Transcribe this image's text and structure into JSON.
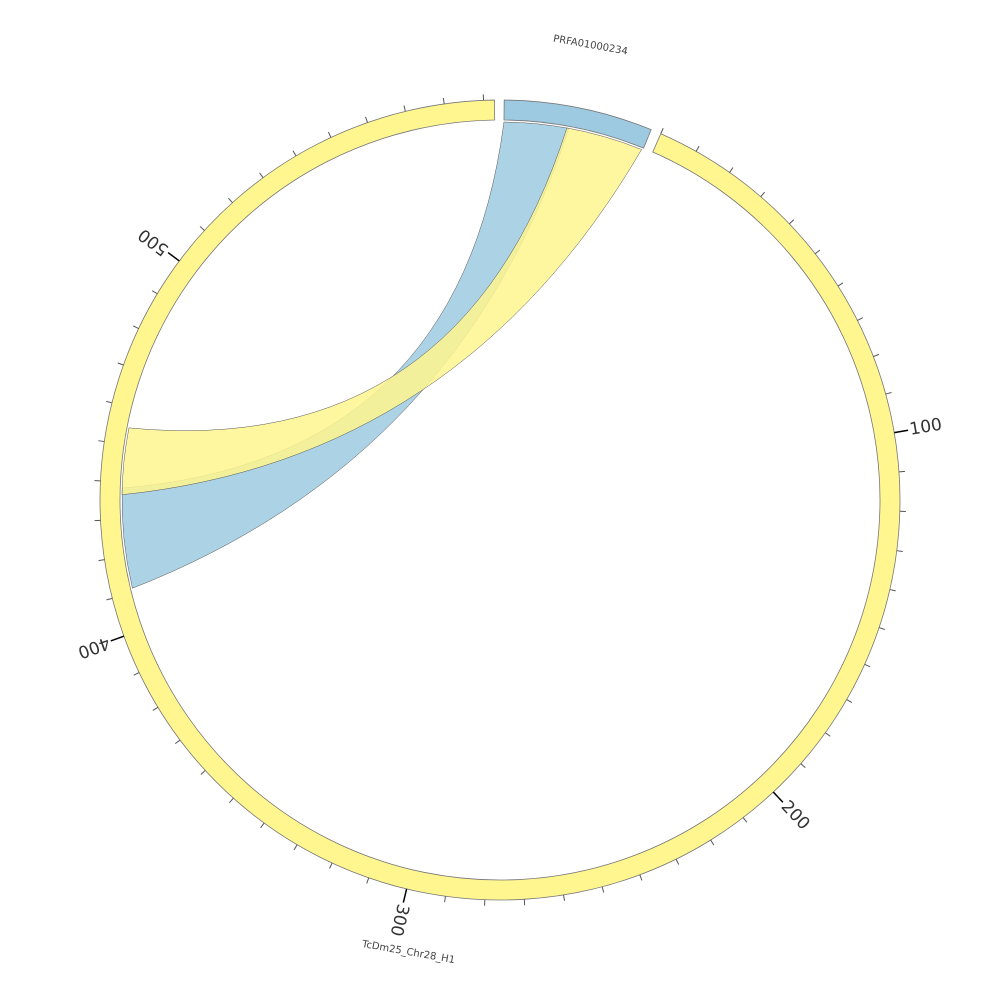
{
  "segments": [
    {
      "label": "PRFA01000234"
    },
    {
      "label": "TcDm25_Chr28_H1"
    }
  ],
  "ticks": [
    "100",
    "200",
    "300",
    "400",
    "500"
  ]
}
